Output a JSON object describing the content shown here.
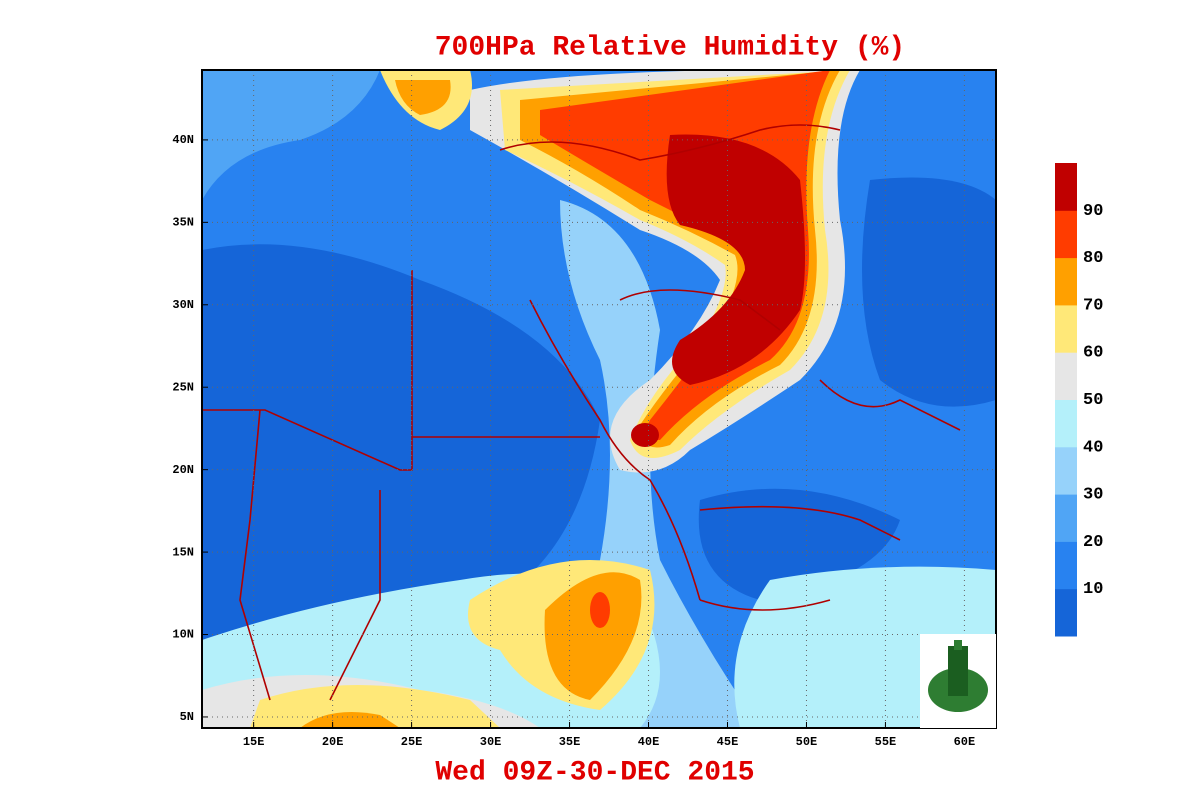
{
  "title": "700HPa Relative Humidity (%)",
  "valid_time": "Wed 09Z-30-DEC 2015",
  "map": {
    "lon_range": [
      11.73,
      62.0
    ],
    "lat_range": [
      4.33,
      44.24
    ],
    "lon_ticks": [
      {
        "value": 15,
        "label": "15E"
      },
      {
        "value": 20,
        "label": "20E"
      },
      {
        "value": 25,
        "label": "25E"
      },
      {
        "value": 30,
        "label": "30E"
      },
      {
        "value": 35,
        "label": "35E"
      },
      {
        "value": 40,
        "label": "40E"
      },
      {
        "value": 45,
        "label": "45E"
      },
      {
        "value": 50,
        "label": "50E"
      },
      {
        "value": 55,
        "label": "55E"
      },
      {
        "value": 60,
        "label": "60E"
      }
    ],
    "lat_ticks": [
      {
        "value": 5,
        "label": "5N"
      },
      {
        "value": 10,
        "label": "10N"
      },
      {
        "value": 15,
        "label": "15N"
      },
      {
        "value": 20,
        "label": "20N"
      },
      {
        "value": 25,
        "label": "25N"
      },
      {
        "value": 30,
        "label": "30N"
      },
      {
        "value": 35,
        "label": "35N"
      },
      {
        "value": 40,
        "label": "40N"
      }
    ],
    "grid": true
  },
  "colorbar": {
    "levels": [
      10,
      20,
      30,
      40,
      50,
      60,
      70,
      80,
      90
    ],
    "colors": [
      "#1565d8",
      "#2882f0",
      "#50a5f5",
      "#96d2fa",
      "#b4f0fa",
      "#e6e6e6",
      "#ffe878",
      "#ffa000",
      "#ff3c00",
      "#c00000"
    ]
  }
}
